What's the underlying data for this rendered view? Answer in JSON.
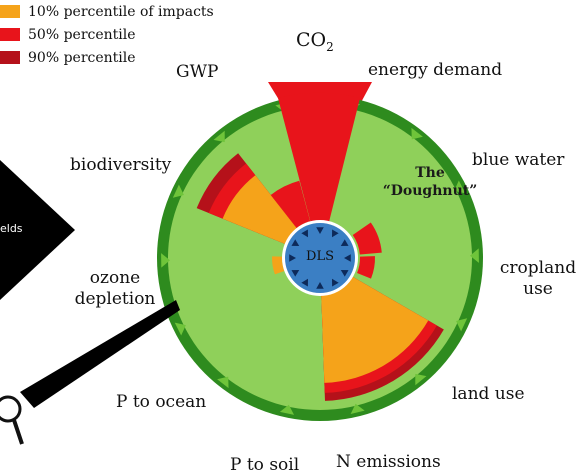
{
  "legend": [
    {
      "label": "10% percentile of impacts",
      "color": "#f5a31a"
    },
    {
      "label": "50% percentile",
      "color": "#e8141b"
    },
    {
      "label": "90% percentile",
      "color": "#b5111a"
    }
  ],
  "labels": {
    "co2": "CO",
    "co2_sub": "2",
    "gwp": "GWP",
    "energy_demand": "energy demand",
    "biodiversity": "biodiversity",
    "blue_water": "blue water",
    "cropland_use_line1": "cropland",
    "cropland_use_line2": "use",
    "ozone_line1": "ozone",
    "ozone_line2": "depletion",
    "land_use": "land use",
    "p_ocean": "P to ocean",
    "p_soil": "P to soil",
    "n_emissions": "N emissions"
  },
  "doughnut_title_line1": "The",
  "doughnut_title_line2": "“Doughnut”",
  "center_label": "DLS",
  "side_panel_text": "elds",
  "icons": {
    "magnifier": "magnifying-glass-icon"
  },
  "colors": {
    "ring": "#2e8b1e",
    "disc": "#8fd05a",
    "center": "#3b7fc4",
    "p10": "#f5a31a",
    "p50": "#e8141b",
    "p90": "#b5111a"
  }
}
